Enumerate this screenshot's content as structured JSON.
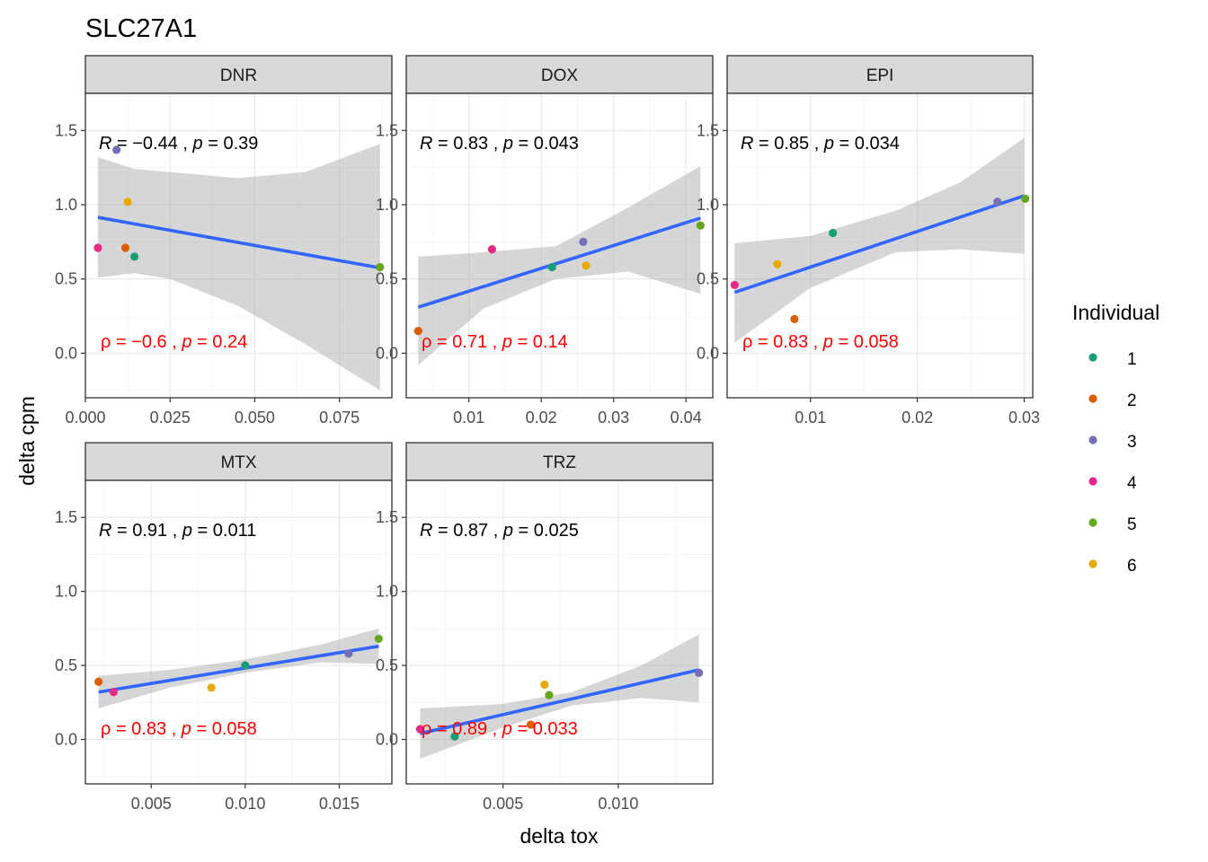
{
  "chart_data": {
    "type": "scatter",
    "title": "SLC27A1",
    "xlabel": "delta tox",
    "ylabel": "delta cpm",
    "ylim": [
      -0.3,
      1.75
    ],
    "y_ticks": [
      0.0,
      0.5,
      1.0,
      1.5
    ],
    "y_tick_labels": [
      "0.0",
      "0.5",
      "1.0",
      "1.5"
    ],
    "grid": true,
    "legend": {
      "title": "Individual",
      "position": "right",
      "entries": [
        {
          "label": "1",
          "color": "#1B9E77"
        },
        {
          "label": "2",
          "color": "#D95F02"
        },
        {
          "label": "3",
          "color": "#7570B3"
        },
        {
          "label": "4",
          "color": "#E7298A"
        },
        {
          "label": "5",
          "color": "#66A61E"
        },
        {
          "label": "6",
          "color": "#E6AB02"
        }
      ]
    },
    "panels": [
      {
        "name": "DNR",
        "xlim": [
          0.0,
          0.0905
        ],
        "x_ticks": [
          0.0,
          0.025,
          0.05,
          0.075
        ],
        "x_tick_labels": [
          "0.000",
          "0.025",
          "0.050",
          "0.075"
        ],
        "pearson": {
          "r": "−0.44",
          "p": "0.39"
        },
        "spearman": {
          "rho": "−0.6",
          "p": "0.24"
        },
        "fit": {
          "x": [
            0.0037,
            0.087
          ],
          "y": [
            0.915,
            0.575
          ]
        },
        "band": {
          "x": [
            0.0037,
            0.0145,
            0.025,
            0.045,
            0.065,
            0.087
          ],
          "lower": [
            0.51,
            0.54,
            0.5,
            0.32,
            0.06,
            -0.25
          ],
          "upper": [
            1.32,
            1.24,
            1.22,
            1.18,
            1.22,
            1.41
          ]
        },
        "points": [
          {
            "ind": 1,
            "x": 0.0145,
            "y": 0.65
          },
          {
            "ind": 2,
            "x": 0.0118,
            "y": 0.71
          },
          {
            "ind": 3,
            "x": 0.0092,
            "y": 1.37
          },
          {
            "ind": 4,
            "x": 0.0037,
            "y": 0.71
          },
          {
            "ind": 5,
            "x": 0.087,
            "y": 0.58
          },
          {
            "ind": 6,
            "x": 0.0125,
            "y": 1.02
          }
        ]
      },
      {
        "name": "DOX",
        "xlim": [
          0.00135,
          0.0437
        ],
        "x_ticks": [
          0.01,
          0.02,
          0.03,
          0.04
        ],
        "x_tick_labels": [
          "0.01",
          "0.02",
          "0.03",
          "0.04"
        ],
        "pearson": {
          "r": "0.83",
          "p": "0.043"
        },
        "spearman": {
          "rho": "0.71",
          "p": "0.14"
        },
        "fit": {
          "x": [
            0.003,
            0.042
          ],
          "y": [
            0.31,
            0.91
          ]
        },
        "band": {
          "x": [
            0.003,
            0.012,
            0.022,
            0.032,
            0.042
          ],
          "lower": [
            -0.08,
            0.3,
            0.5,
            0.55,
            0.4
          ],
          "upper": [
            0.65,
            0.68,
            0.72,
            0.98,
            1.26
          ]
        },
        "points": [
          {
            "ind": 1,
            "x": 0.0215,
            "y": 0.58
          },
          {
            "ind": 2,
            "x": 0.003,
            "y": 0.15
          },
          {
            "ind": 3,
            "x": 0.0258,
            "y": 0.75
          },
          {
            "ind": 4,
            "x": 0.0132,
            "y": 0.7
          },
          {
            "ind": 5,
            "x": 0.042,
            "y": 0.86
          },
          {
            "ind": 6,
            "x": 0.0262,
            "y": 0.59
          }
        ]
      },
      {
        "name": "EPI",
        "xlim": [
          0.0022,
          0.0308
        ],
        "x_ticks": [
          0.01,
          0.02,
          0.03
        ],
        "x_tick_labels": [
          "0.01",
          "0.02",
          "0.03"
        ],
        "pearson": {
          "r": "0.85",
          "p": "0.034"
        },
        "spearman": {
          "rho": "0.83",
          "p": "0.058"
        },
        "fit": {
          "x": [
            0.0029,
            0.03
          ],
          "y": [
            0.41,
            1.06
          ]
        },
        "band": {
          "x": [
            0.0029,
            0.01,
            0.018,
            0.024,
            0.03
          ],
          "lower": [
            0.07,
            0.44,
            0.68,
            0.7,
            0.67
          ],
          "upper": [
            0.74,
            0.79,
            0.96,
            1.15,
            1.45
          ]
        },
        "points": [
          {
            "ind": 1,
            "x": 0.0121,
            "y": 0.81
          },
          {
            "ind": 2,
            "x": 0.0085,
            "y": 0.23
          },
          {
            "ind": 3,
            "x": 0.0275,
            "y": 1.02
          },
          {
            "ind": 4,
            "x": 0.0029,
            "y": 0.46
          },
          {
            "ind": 5,
            "x": 0.0301,
            "y": 1.04
          },
          {
            "ind": 6,
            "x": 0.0069,
            "y": 0.6
          }
        ]
      },
      {
        "name": "MTX",
        "xlim": [
          0.0015,
          0.0178
        ],
        "x_ticks": [
          0.005,
          0.01,
          0.015
        ],
        "x_tick_labels": [
          "0.005",
          "0.010",
          "0.015"
        ],
        "pearson": {
          "r": "0.91",
          "p": "0.011"
        },
        "spearman": {
          "rho": "0.83",
          "p": "0.058"
        },
        "fit": {
          "x": [
            0.0022,
            0.0171
          ],
          "y": [
            0.32,
            0.63
          ]
        },
        "band": {
          "x": [
            0.0022,
            0.006,
            0.01,
            0.014,
            0.0171
          ],
          "lower": [
            0.21,
            0.35,
            0.45,
            0.52,
            0.51
          ],
          "upper": [
            0.43,
            0.47,
            0.54,
            0.64,
            0.75
          ]
        },
        "points": [
          {
            "ind": 1,
            "x": 0.01,
            "y": 0.5
          },
          {
            "ind": 2,
            "x": 0.0022,
            "y": 0.39
          },
          {
            "ind": 3,
            "x": 0.0155,
            "y": 0.58
          },
          {
            "ind": 4,
            "x": 0.003,
            "y": 0.32
          },
          {
            "ind": 5,
            "x": 0.0171,
            "y": 0.68
          },
          {
            "ind": 6,
            "x": 0.0082,
            "y": 0.35
          }
        ]
      },
      {
        "name": "TRZ",
        "xlim": [
          0.0008,
          0.0141
        ],
        "x_ticks": [
          0.005,
          0.01
        ],
        "x_tick_labels": [
          "0.005",
          "0.010"
        ],
        "pearson": {
          "r": "0.87",
          "p": "0.025"
        },
        "spearman": {
          "rho": "0.89",
          "p": "0.033"
        },
        "fit": {
          "x": [
            0.0014,
            0.0135
          ],
          "y": [
            0.04,
            0.47
          ]
        },
        "band": {
          "x": [
            0.0014,
            0.005,
            0.008,
            0.011,
            0.0135
          ],
          "lower": [
            -0.13,
            0.08,
            0.23,
            0.28,
            0.25
          ],
          "upper": [
            0.21,
            0.24,
            0.32,
            0.5,
            0.71
          ]
        },
        "points": [
          {
            "ind": 1,
            "x": 0.0029,
            "y": 0.02
          },
          {
            "ind": 2,
            "x": 0.0062,
            "y": 0.1
          },
          {
            "ind": 3,
            "x": 0.0135,
            "y": 0.45
          },
          {
            "ind": 4,
            "x": 0.0014,
            "y": 0.07
          },
          {
            "ind": 5,
            "x": 0.007,
            "y": 0.3
          },
          {
            "ind": 6,
            "x": 0.0068,
            "y": 0.37
          }
        ]
      }
    ]
  }
}
